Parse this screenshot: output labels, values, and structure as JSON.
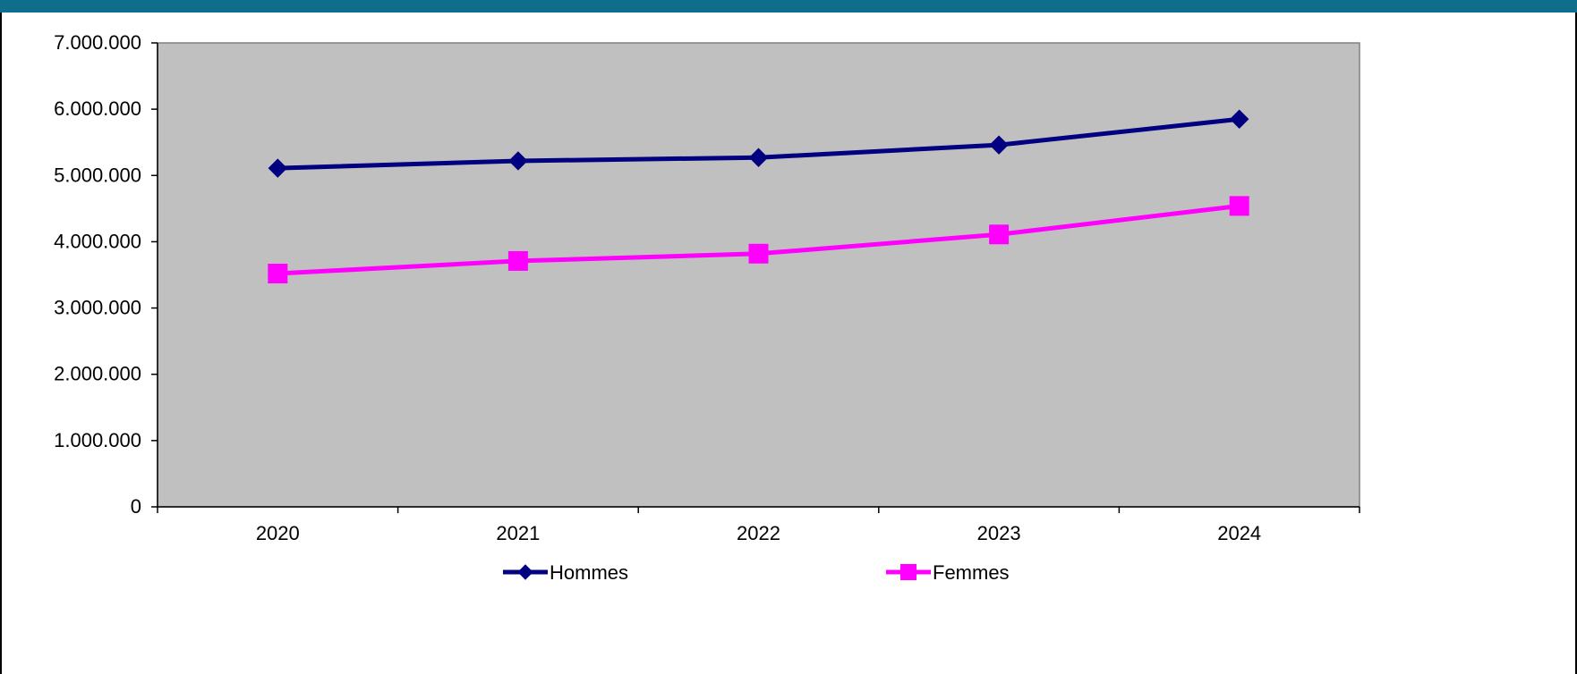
{
  "header": {
    "bar_color": "#0f6e8c"
  },
  "chart_data": {
    "type": "line",
    "categories": [
      "2020",
      "2021",
      "2022",
      "2023",
      "2024"
    ],
    "series": [
      {
        "name": "Hommes",
        "values": [
          5110000,
          5220000,
          5270000,
          5460000,
          5850000
        ],
        "color": "#000080",
        "marker": "diamond"
      },
      {
        "name": "Femmes",
        "values": [
          3520000,
          3710000,
          3820000,
          4110000,
          4540000
        ],
        "color": "#ff00ff",
        "marker": "square"
      }
    ],
    "ylim": [
      0,
      7000000
    ],
    "ytick_values": [
      0,
      1000000,
      2000000,
      3000000,
      4000000,
      5000000,
      6000000,
      7000000
    ],
    "ytick_labels": [
      "0",
      "1.000.000",
      "2.000.000",
      "3.000.000",
      "4.000.000",
      "5.000.000",
      "6.000.000",
      "7.000.000"
    ],
    "plot_background": "#c0c0c0",
    "grid": false,
    "legend_position": "bottom"
  }
}
